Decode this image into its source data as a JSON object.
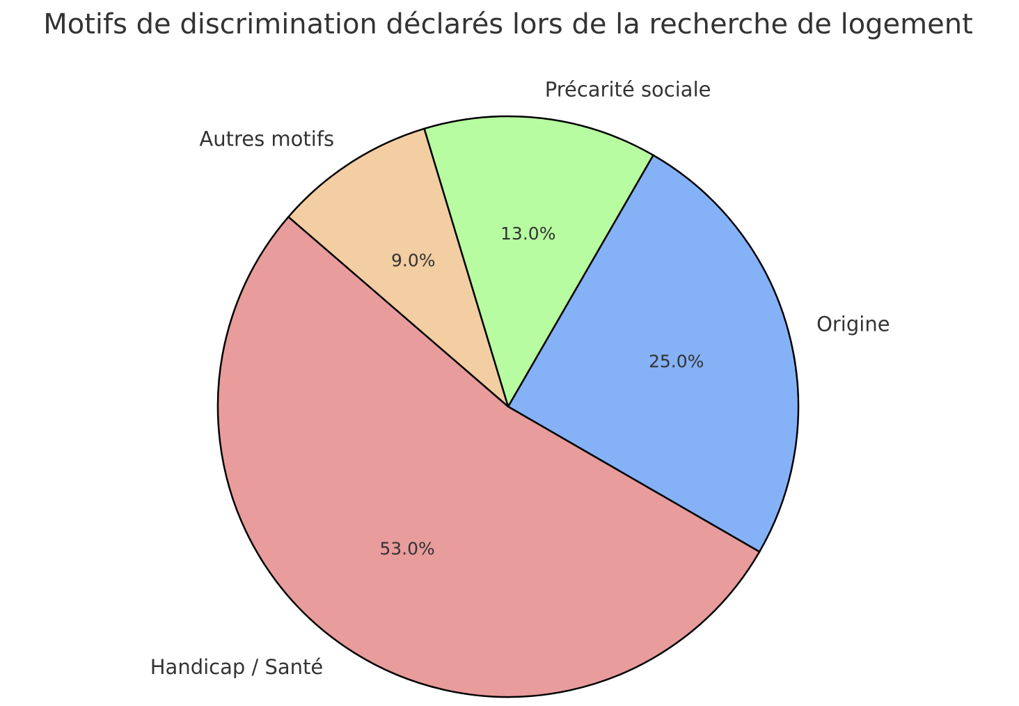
{
  "chart_data": {
    "type": "pie",
    "title": "Motifs de discrimination déclarés lors de la recherche de logement",
    "slices": [
      {
        "label": "Origine",
        "value": 25.0,
        "pct_label": "25.0%",
        "color": "#85b1f7"
      },
      {
        "label": "Précarité sociale",
        "value": 13.0,
        "pct_label": "13.0%",
        "color": "#b7fca0"
      },
      {
        "label": "Autres motifs",
        "value": 9.0,
        "pct_label": "9.0%",
        "color": "#f2cea2"
      },
      {
        "label": "Handicap / Santé",
        "value": 53.0,
        "pct_label": "53.0%",
        "color": "#e89c9c"
      }
    ],
    "start_angle_deg": -30,
    "direction": "counterclockwise"
  }
}
